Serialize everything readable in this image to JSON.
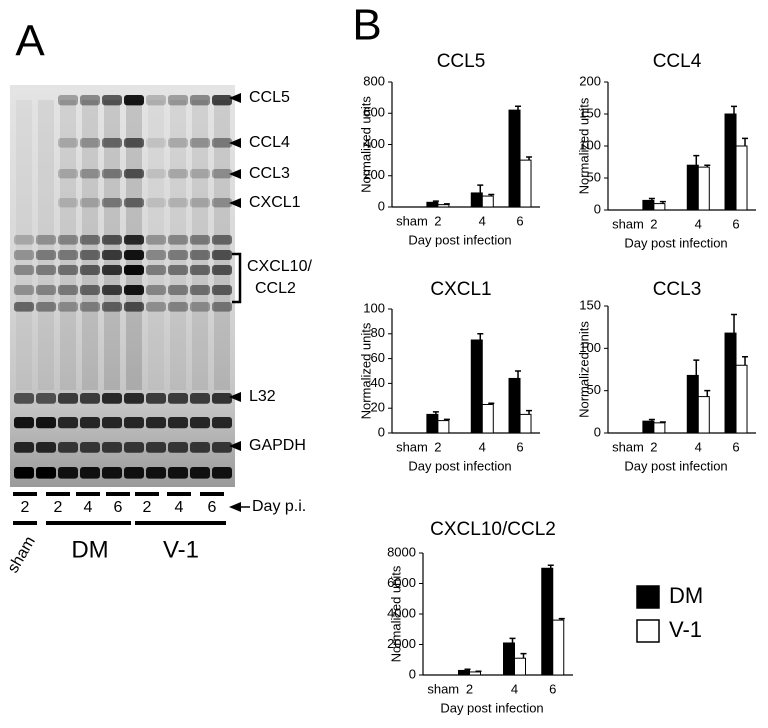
{
  "panels": [
    "A",
    "B"
  ],
  "gel": {
    "bands": [
      "CCL5",
      "CCL4",
      "CCL3",
      "CXCL1",
      "CXCL10/",
      "CCL2",
      "L32",
      "GAPDH"
    ],
    "day_label": "Day p.i.",
    "lanes": [
      "2",
      "2",
      "4",
      "6",
      "2",
      "4",
      "6"
    ],
    "groups": [
      "sham",
      "DM",
      "V-1"
    ]
  },
  "chart_data": [
    {
      "type": "bar",
      "title": "CCL5",
      "ylabel": "Normalized units",
      "xlabel": "Day post infection",
      "categories": [
        "sham",
        "2",
        "4",
        "6"
      ],
      "ylim": [
        0,
        800
      ],
      "yticks": [
        0,
        200,
        400,
        600,
        800
      ],
      "series": [
        {
          "color": "#000000",
          "values": [
            null,
            30,
            90,
            620
          ],
          "errors": [
            null,
            8,
            50,
            25
          ]
        },
        {
          "color": "#ffffff",
          "values": [
            null,
            15,
            70,
            300
          ],
          "errors": [
            null,
            5,
            10,
            20
          ]
        }
      ]
    },
    {
      "type": "bar",
      "title": "CCL4",
      "ylabel": "Normalized units",
      "xlabel": "Day post infection",
      "categories": [
        "sham",
        "2",
        "4",
        "6"
      ],
      "ylim": [
        0,
        200
      ],
      "yticks": [
        0,
        50,
        100,
        150,
        200
      ],
      "series": [
        {
          "color": "#000000",
          "values": [
            null,
            15,
            70,
            150
          ],
          "errors": [
            null,
            3,
            15,
            12
          ]
        },
        {
          "color": "#ffffff",
          "values": [
            null,
            10,
            67,
            100
          ],
          "errors": [
            null,
            3,
            3,
            12
          ]
        }
      ]
    },
    {
      "type": "bar",
      "title": "CXCL1",
      "ylabel": "Normalized units",
      "xlabel": "Day post infection",
      "categories": [
        "sham",
        "2",
        "4",
        "6"
      ],
      "ylim": [
        0,
        100
      ],
      "yticks": [
        0,
        20,
        40,
        60,
        80,
        100
      ],
      "series": [
        {
          "color": "#000000",
          "values": [
            null,
            15,
            75,
            44
          ],
          "errors": [
            null,
            2,
            5,
            6
          ]
        },
        {
          "color": "#ffffff",
          "values": [
            null,
            10,
            23,
            15
          ],
          "errors": [
            null,
            1,
            1,
            3
          ]
        }
      ]
    },
    {
      "type": "bar",
      "title": "CCL3",
      "ylabel": "Normalized units",
      "xlabel": "Day post infection",
      "categories": [
        "sham",
        "2",
        "4",
        "6"
      ],
      "ylim": [
        0,
        150
      ],
      "yticks": [
        0,
        50,
        100,
        150
      ],
      "series": [
        {
          "color": "#000000",
          "values": [
            null,
            14,
            68,
            118
          ],
          "errors": [
            null,
            2,
            18,
            22
          ]
        },
        {
          "color": "#ffffff",
          "values": [
            null,
            12,
            43,
            80
          ],
          "errors": [
            null,
            1,
            7,
            10
          ]
        }
      ]
    },
    {
      "type": "bar",
      "title": "CXCL10/CCL2",
      "ylabel": "Normalized units",
      "xlabel": "Day post infection",
      "categories": [
        "sham",
        "2",
        "4",
        "6"
      ],
      "ylim": [
        0,
        8000
      ],
      "yticks": [
        0,
        2000,
        4000,
        6000,
        8000
      ],
      "series": [
        {
          "name": "DM",
          "color": "#000000",
          "values": [
            null,
            300,
            2100,
            7000
          ],
          "errors": [
            null,
            80,
            300,
            200
          ]
        },
        {
          "name": "V-1",
          "color": "#ffffff",
          "values": [
            null,
            200,
            1100,
            3600
          ],
          "errors": [
            null,
            50,
            300,
            100
          ]
        }
      ]
    }
  ]
}
